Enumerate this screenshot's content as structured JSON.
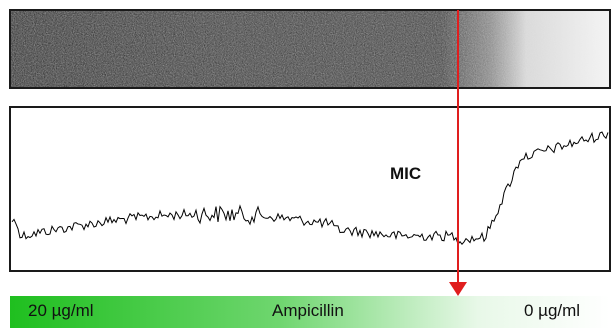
{
  "annotation": {
    "mic": "MIC"
  },
  "gradient_bar": {
    "left_label": "20 µg/ml",
    "center_label": "Ampicillin",
    "right_label": "0 µg/ml",
    "colors": {
      "high": "#1fbf1f",
      "low": "#ffffff"
    }
  },
  "colors": {
    "marker": "#e01e1e",
    "frame": "#1a1a1a",
    "trace": "#000000"
  },
  "icons": {
    "marker_arrow": "down-arrow-red"
  }
}
